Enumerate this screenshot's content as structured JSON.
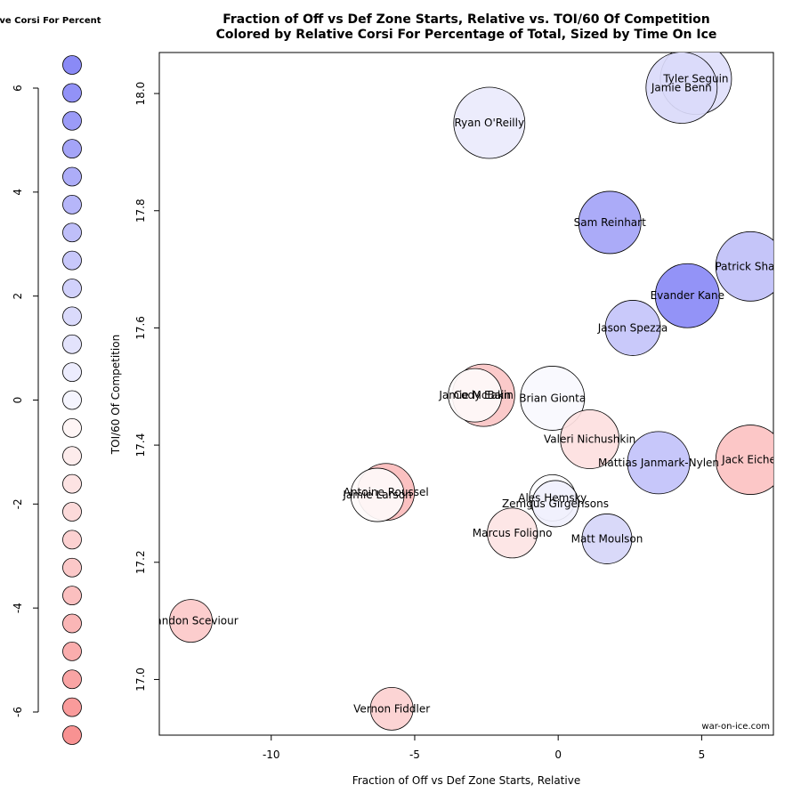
{
  "chart_data": {
    "type": "scatter",
    "title": "Fraction of Off vs Def Zone Starts, Relative vs. TOI/60 Of Competition",
    "subtitle": "Colored by Relative Corsi For Percentage of Total, Sized by Time On Ice",
    "xlabel": "Fraction of Off vs Def Zone Starts, Relative",
    "ylabel": "TOI/60 Of Competition",
    "xlim": [
      -13.9,
      7.5
    ],
    "ylim": [
      16.905,
      18.07
    ],
    "x_ticks": [
      -10,
      -5,
      0,
      5
    ],
    "y_ticks": [
      17.0,
      17.2,
      17.4,
      17.6,
      17.8,
      18.0
    ],
    "y_tick_labels": [
      "17.0",
      "17.2",
      "17.4",
      "17.6",
      "17.8",
      "18.0"
    ],
    "watermark": "war-on-ice.com",
    "points": [
      {
        "name": "Tyler Seguin",
        "x": 4.8,
        "y": 18.025,
        "size": 40,
        "color": "#e0e0fb"
      },
      {
        "name": "Jamie Benn",
        "x": 4.3,
        "y": 18.01,
        "size": 40,
        "color": "#dadafa"
      },
      {
        "name": "Ryan O'Reilly",
        "x": -2.4,
        "y": 17.95,
        "size": 40,
        "color": "#eaeafc"
      },
      {
        "name": "Sam Reinhart",
        "x": 1.8,
        "y": 17.78,
        "size": 35,
        "color": "#a4a4f7"
      },
      {
        "name": "Patrick Sharp",
        "x": 6.7,
        "y": 17.705,
        "size": 39,
        "color": "#c0c0f9"
      },
      {
        "name": "Evander Kane",
        "x": 4.5,
        "y": 17.655,
        "size": 36,
        "color": "#8a8af6"
      },
      {
        "name": "Jason Spezza",
        "x": 2.6,
        "y": 17.6,
        "size": 31,
        "color": "#c4c4fa"
      },
      {
        "name": "Cody Eakin",
        "x": -2.6,
        "y": 17.485,
        "size": 35,
        "color": "#fbc6c6"
      },
      {
        "name": "Jamie McBain",
        "x": -2.9,
        "y": 17.485,
        "size": 30,
        "color": "#fefafa"
      },
      {
        "name": "Brian Gionta",
        "x": -0.2,
        "y": 17.48,
        "size": 36,
        "color": "#f8f8fe"
      },
      {
        "name": "Valeri Nichushkin",
        "x": 1.1,
        "y": 17.41,
        "size": 33,
        "color": "#fde0e0"
      },
      {
        "name": "Mattias Janmark-Nylen",
        "x": 3.5,
        "y": 17.37,
        "size": 35,
        "color": "#c2c2fa"
      },
      {
        "name": "Jack Eichel",
        "x": 6.7,
        "y": 17.375,
        "size": 39,
        "color": "#fcc2c2"
      },
      {
        "name": "Antoine Roussel",
        "x": -6.0,
        "y": 17.32,
        "size": 32,
        "color": "#fbbcbc"
      },
      {
        "name": "Jamie Larson",
        "x": -6.3,
        "y": 17.315,
        "size": 30,
        "color": "#fefafa"
      },
      {
        "name": "Ales Hemsky",
        "x": -0.2,
        "y": 17.31,
        "size": 26,
        "color": "#fcfcfe"
      },
      {
        "name": "Zemgus Girgensons",
        "x": -0.1,
        "y": 17.3,
        "size": 26,
        "color": "#f0f0fd"
      },
      {
        "name": "Marcus Foligno",
        "x": -1.6,
        "y": 17.25,
        "size": 28,
        "color": "#fde4e4"
      },
      {
        "name": "Matt Moulson",
        "x": 1.7,
        "y": 17.24,
        "size": 28,
        "color": "#d6d6f9"
      },
      {
        "name": "Brandon Sceviour",
        "x": -12.8,
        "y": 17.1,
        "size": 24,
        "color": "#fcc9c9"
      },
      {
        "name": "Vernon Fiddler",
        "x": -5.8,
        "y": 16.95,
        "size": 24,
        "color": "#fcd0d0"
      }
    ],
    "legend": {
      "title": "Relative Corsi For Percent",
      "ticks": [
        6,
        4,
        2,
        0,
        -2,
        -4,
        -6
      ],
      "ylim": [
        -6,
        6
      ],
      "swatches": [
        "#8a8af6",
        "#9292f7",
        "#9b9bf7",
        "#a4a4f7",
        "#adadf8",
        "#b6b6f9",
        "#bfbff9",
        "#c8c8fa",
        "#d1d1fb",
        "#dadafb",
        "#e3e3fc",
        "#ececfd",
        "#f5f5fe",
        "#fef5f5",
        "#fdecec",
        "#fde3e3",
        "#fcdada",
        "#fcd1d1",
        "#fbc8c8",
        "#fbbfbf",
        "#fab6b6",
        "#faadad",
        "#f9a4a4",
        "#f99b9b",
        "#f89292"
      ]
    }
  }
}
